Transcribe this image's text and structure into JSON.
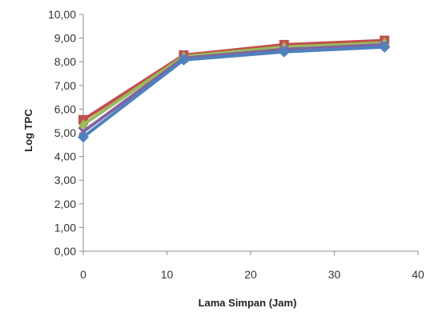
{
  "chart_data": {
    "type": "line",
    "xlabel": "Lama Simpan (Jam)",
    "ylabel": "Log TPC",
    "xlim": [
      0,
      40
    ],
    "ylim": [
      0,
      10
    ],
    "x_ticks": [
      "0",
      "10",
      "20",
      "30",
      "40"
    ],
    "y_ticks": [
      "0,00",
      "1,00",
      "2,00",
      "3,00",
      "4,00",
      "5,00",
      "6,00",
      "7,00",
      "8,00",
      "9,00",
      "10,00"
    ],
    "grid": false,
    "legend": "none",
    "x": [
      0,
      12,
      24,
      36
    ],
    "series": [
      {
        "color": "#c0504d",
        "marker": "square",
        "values": [
          5.55,
          8.28,
          8.72,
          8.9
        ]
      },
      {
        "color": "#9bbb59",
        "marker": "triangle",
        "values": [
          5.35,
          8.22,
          8.62,
          8.8
        ]
      },
      {
        "color": "#8064a2",
        "marker": "x",
        "values": [
          5.05,
          8.15,
          8.52,
          8.72
        ]
      },
      {
        "color": "#4f81bd",
        "marker": "diamond",
        "values": [
          4.82,
          8.08,
          8.42,
          8.62
        ]
      }
    ]
  }
}
